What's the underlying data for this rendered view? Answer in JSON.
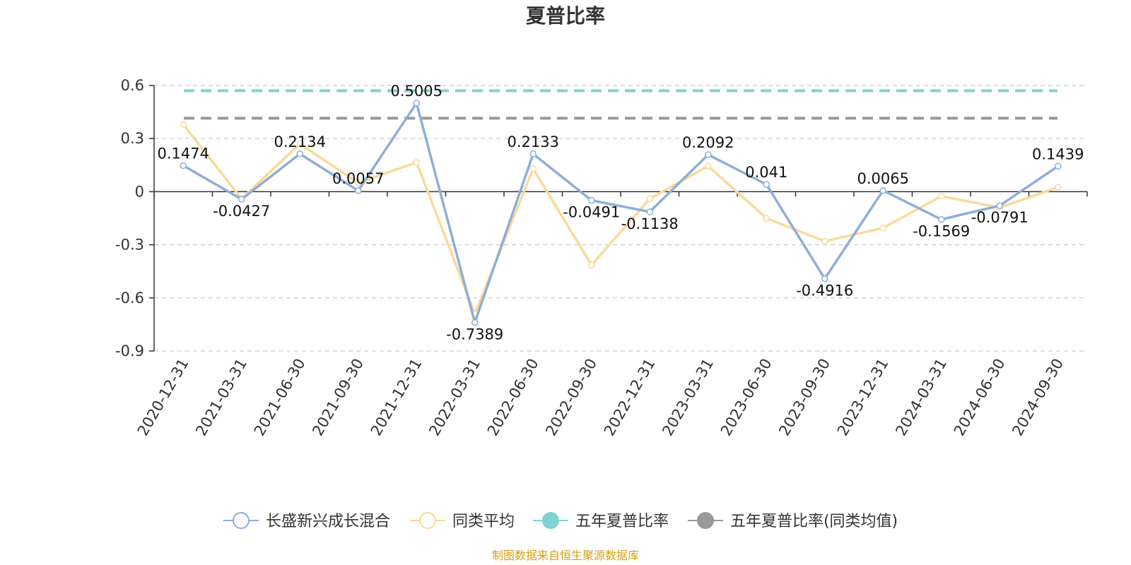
{
  "chart_data": {
    "type": "line",
    "title": "夏普比率",
    "categories": [
      "2020-12-31",
      "2021-03-31",
      "2021-06-30",
      "2021-09-30",
      "2021-12-31",
      "2022-03-31",
      "2022-06-30",
      "2022-09-30",
      "2022-12-31",
      "2023-03-31",
      "2023-06-30",
      "2023-09-30",
      "2023-12-31",
      "2024-03-31",
      "2024-06-30",
      "2024-09-30"
    ],
    "ylim": [
      -0.9,
      0.6
    ],
    "yticks": [
      -0.9,
      -0.6,
      -0.3,
      0,
      0.3,
      0.6
    ],
    "ytick_labels": [
      "-0.9",
      "-0.6",
      "-0.3",
      "0",
      "0.3",
      "0.6"
    ],
    "grid": true,
    "legend_position": "bottom",
    "series": [
      {
        "name": "长盛新兴成长混合",
        "color": "#8eaed8",
        "values": [
          0.1474,
          -0.0427,
          0.2134,
          0.0057,
          0.5005,
          -0.7389,
          0.2133,
          -0.0491,
          -0.1138,
          0.2092,
          0.041,
          -0.4916,
          0.0065,
          -0.1569,
          -0.0791,
          0.1439
        ],
        "labels": [
          "0.1474",
          "-0.0427",
          "0.2134",
          "0.0057",
          "0.5005",
          "-0.7389",
          "0.2133",
          "-0.0491",
          "-0.1138",
          "0.2092",
          "0.041",
          "-0.4916",
          "0.0065",
          "-0.1569",
          "-0.0791",
          "0.1439"
        ]
      },
      {
        "name": "同类平均",
        "color": "#fbd99a",
        "values": [
          0.38,
          -0.04,
          0.27,
          0.05,
          0.165,
          -0.69,
          0.13,
          -0.415,
          -0.04,
          0.145,
          -0.15,
          -0.28,
          -0.205,
          -0.025,
          -0.09,
          0.025
        ]
      },
      {
        "name": "五年夏普比率",
        "color": "#7fd3d0",
        "constant": 0.57
      },
      {
        "name": "五年夏普比率(同类均值)",
        "color": "#999999",
        "constant": 0.415
      }
    ]
  },
  "source_text": "制图数据来自恒生聚源数据库"
}
